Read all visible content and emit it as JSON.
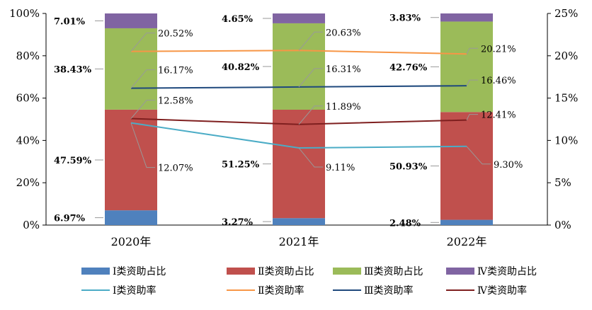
{
  "chart_data": {
    "type": "bar",
    "stacked": true,
    "categories": [
      "2020年",
      "2021年",
      "2022年"
    ],
    "ylim_left": [
      0,
      100
    ],
    "yticks_left": [
      "0%",
      "20%",
      "40%",
      "60%",
      "80%",
      "100%"
    ],
    "ylim_right": [
      0,
      25
    ],
    "yticks_right": [
      "0%",
      "5%",
      "10%",
      "15%",
      "20%",
      "25%"
    ],
    "legend_position": "bottom",
    "series": [
      {
        "name": "Ⅰ类资助占比",
        "kind": "bar",
        "axis": "left",
        "color": "#4f81bd",
        "values": [
          6.97,
          3.27,
          2.48
        ],
        "labels": [
          "6.97%",
          "3.27%",
          "2.48%"
        ]
      },
      {
        "name": "Ⅱ类资助占比",
        "kind": "bar",
        "axis": "left",
        "color": "#c0504d",
        "values": [
          47.59,
          51.25,
          50.93
        ],
        "labels": [
          "47.59%",
          "51.25%",
          "50.93%"
        ]
      },
      {
        "name": "Ⅲ类资助占比",
        "kind": "bar",
        "axis": "left",
        "color": "#9bbb59",
        "values": [
          38.43,
          40.82,
          42.76
        ],
        "labels": [
          "38.43%",
          "40.82%",
          "42.76%"
        ]
      },
      {
        "name": "Ⅳ类资助占比",
        "kind": "bar",
        "axis": "left",
        "color": "#8064a2",
        "values": [
          7.01,
          4.65,
          3.83
        ],
        "labels": [
          "7.01%",
          "4.65%",
          "3.83%"
        ]
      },
      {
        "name": "Ⅰ类资助率",
        "kind": "line",
        "axis": "right",
        "color": "#4bacc6",
        "values": [
          12.07,
          9.11,
          9.3
        ],
        "labels": [
          "12.07%",
          "9.11%",
          "9.30%"
        ]
      },
      {
        "name": "Ⅱ类资助率",
        "kind": "line",
        "axis": "right",
        "color": "#f79646",
        "values": [
          20.52,
          20.63,
          20.21
        ],
        "labels": [
          "20.52%",
          "20.63%",
          "20.21%"
        ]
      },
      {
        "name": "Ⅲ类资助率",
        "kind": "line",
        "axis": "right",
        "color": "#1f497d",
        "values": [
          16.17,
          16.31,
          16.46
        ],
        "labels": [
          "16.17%",
          "16.31%",
          "16.46%"
        ]
      },
      {
        "name": "Ⅳ类资助率",
        "kind": "line",
        "axis": "right",
        "color": "#7f1f1f",
        "values": [
          12.58,
          11.89,
          12.41
        ],
        "labels": [
          "12.58%",
          "11.89%",
          "12.41%"
        ]
      }
    ]
  }
}
